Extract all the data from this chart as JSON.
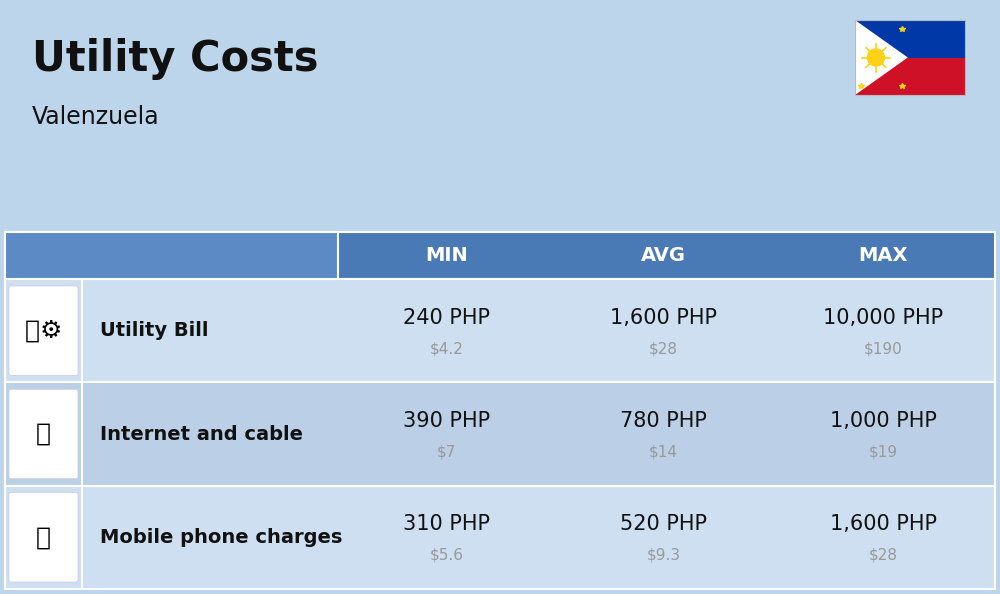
{
  "title": "Utility Costs",
  "subtitle": "Valenzuela",
  "bg_color": "#bdd5ea",
  "header_bg_color": "#4a7ab5",
  "header_text_color": "#ffffff",
  "row_bg_color_even": "#cddff0",
  "row_bg_color_odd": "#bbcfe6",
  "table_border_color": "#ffffff",
  "col_headers": [
    "MIN",
    "AVG",
    "MAX"
  ],
  "rows": [
    {
      "label": "Utility Bill",
      "min_php": "240 PHP",
      "min_usd": "$4.2",
      "avg_php": "1,600 PHP",
      "avg_usd": "$28",
      "max_php": "10,000 PHP",
      "max_usd": "$190"
    },
    {
      "label": "Internet and cable",
      "min_php": "390 PHP",
      "min_usd": "$7",
      "avg_php": "780 PHP",
      "avg_usd": "$14",
      "max_php": "1,000 PHP",
      "max_usd": "$19"
    },
    {
      "label": "Mobile phone charges",
      "min_php": "310 PHP",
      "min_usd": "$5.6",
      "avg_php": "520 PHP",
      "avg_usd": "$9.3",
      "max_php": "1,600 PHP",
      "max_usd": "$28"
    }
  ],
  "title_fontsize": 30,
  "subtitle_fontsize": 17,
  "header_fontsize": 14,
  "label_fontsize": 14,
  "value_fontsize": 15,
  "usd_fontsize": 11,
  "usd_color": "#999999",
  "text_color": "#111111",
  "fig_width": 10.0,
  "fig_height": 5.94,
  "dpi": 100
}
